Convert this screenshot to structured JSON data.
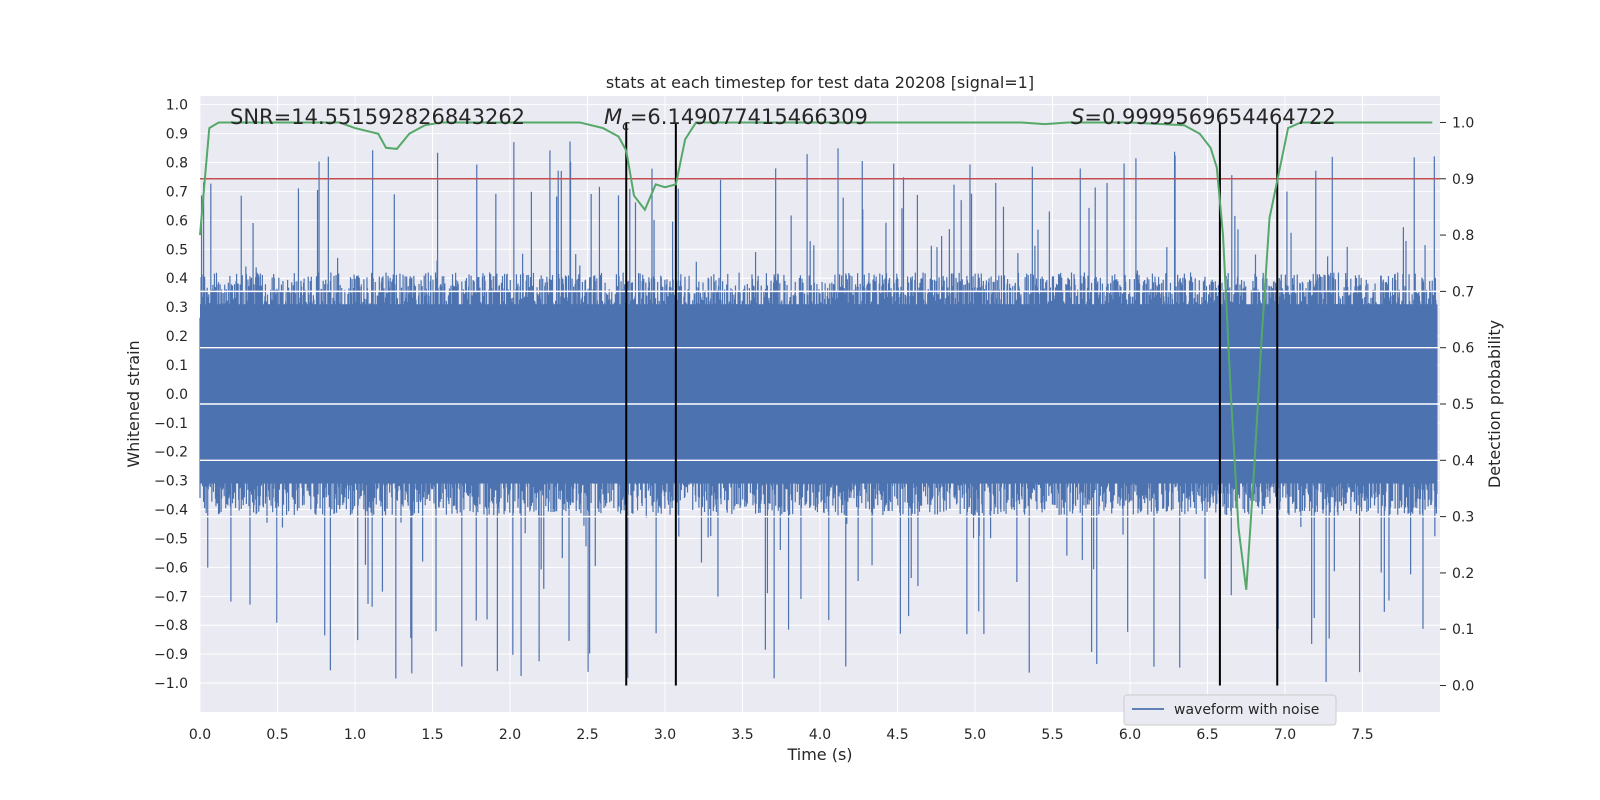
{
  "chart_data": {
    "type": "line",
    "title": "stats at each timestep for test data 20208 [signal=1]",
    "xlabel": "Time (s)",
    "ylabel": "Whitened strain",
    "y2label": "Detection probability",
    "xlim": [
      0.0,
      8.0
    ],
    "ylim": [
      -1.1,
      1.03
    ],
    "y2lim": [
      -0.047,
      1.047
    ],
    "xticks": [
      "0.0",
      "0.5",
      "1.0",
      "1.5",
      "2.0",
      "2.5",
      "3.0",
      "3.5",
      "4.0",
      "4.5",
      "5.0",
      "5.5",
      "6.0",
      "6.5",
      "7.0",
      "7.5"
    ],
    "yticks": [
      "1.0",
      "0.9",
      "0.8",
      "0.7",
      "0.6",
      "0.5",
      "0.4",
      "0.3",
      "0.2",
      "0.1",
      "0.0",
      "−0.1",
      "−0.2",
      "−0.3",
      "−0.4",
      "−0.5",
      "−0.6",
      "−0.7",
      "−0.8",
      "−0.9",
      "−1.0"
    ],
    "y2ticks": [
      "1.0",
      "0.9",
      "0.8",
      "0.7",
      "0.6",
      "0.5",
      "0.4",
      "0.3",
      "0.2",
      "0.1",
      "0.0"
    ],
    "legend": {
      "label": "waveform with noise",
      "location": "lower-right"
    },
    "annotations": {
      "snr": "SNR=14.551592826843262",
      "mc_symbol": "M",
      "mc_sub": "c",
      "mc_value": "=6.149077415466309",
      "s_symbol": "S",
      "s_value": "=0.9999569654464722"
    },
    "threshold_probability": 0.9,
    "vertical_lines_s": [
      2.75,
      3.07,
      6.58,
      6.95
    ],
    "series": [
      {
        "name": "waveform with noise",
        "color": "#4c72b0",
        "description": "noisy whitened strain sampled over 0-8 s, typical envelope about ±0.4 with peaks near ±0.88",
        "envelope_upper": 0.42,
        "envelope_lower": -0.42,
        "peak_max": 0.88,
        "peak_min": -1.0
      },
      {
        "name": "detection probability",
        "color": "#55a868",
        "x": [
          0.0,
          0.06,
          0.12,
          0.3,
          0.5,
          0.7,
          0.9,
          1.0,
          1.15,
          1.2,
          1.27,
          1.35,
          1.45,
          1.55,
          1.8,
          2.2,
          2.45,
          2.6,
          2.7,
          2.75,
          2.8,
          2.87,
          2.94,
          3.0,
          3.07,
          3.13,
          3.2,
          3.5,
          4.0,
          4.5,
          5.0,
          5.3,
          5.45,
          5.6,
          6.0,
          6.35,
          6.45,
          6.52,
          6.56,
          6.6,
          6.65,
          6.7,
          6.75,
          6.8,
          6.85,
          6.9,
          6.96,
          7.02,
          7.1,
          7.5,
          7.95
        ],
        "y": [
          0.8,
          0.99,
          1.0,
          1.0,
          1.0,
          1.0,
          1.0,
          0.99,
          0.98,
          0.955,
          0.953,
          0.98,
          0.995,
          1.0,
          1.0,
          1.0,
          1.0,
          0.99,
          0.975,
          0.95,
          0.87,
          0.845,
          0.89,
          0.885,
          0.89,
          0.97,
          1.0,
          1.0,
          1.0,
          1.0,
          1.0,
          1.0,
          0.997,
          1.0,
          1.0,
          0.995,
          0.98,
          0.955,
          0.92,
          0.8,
          0.52,
          0.28,
          0.17,
          0.38,
          0.62,
          0.83,
          0.91,
          0.99,
          1.0,
          1.0,
          1.0
        ]
      }
    ]
  },
  "colors": {
    "background": "#eaeaf2",
    "grid": "#ffffff",
    "waveform": "#4c72b0",
    "probability": "#55a868",
    "threshold": "#c44e52",
    "markers": "#000000"
  }
}
